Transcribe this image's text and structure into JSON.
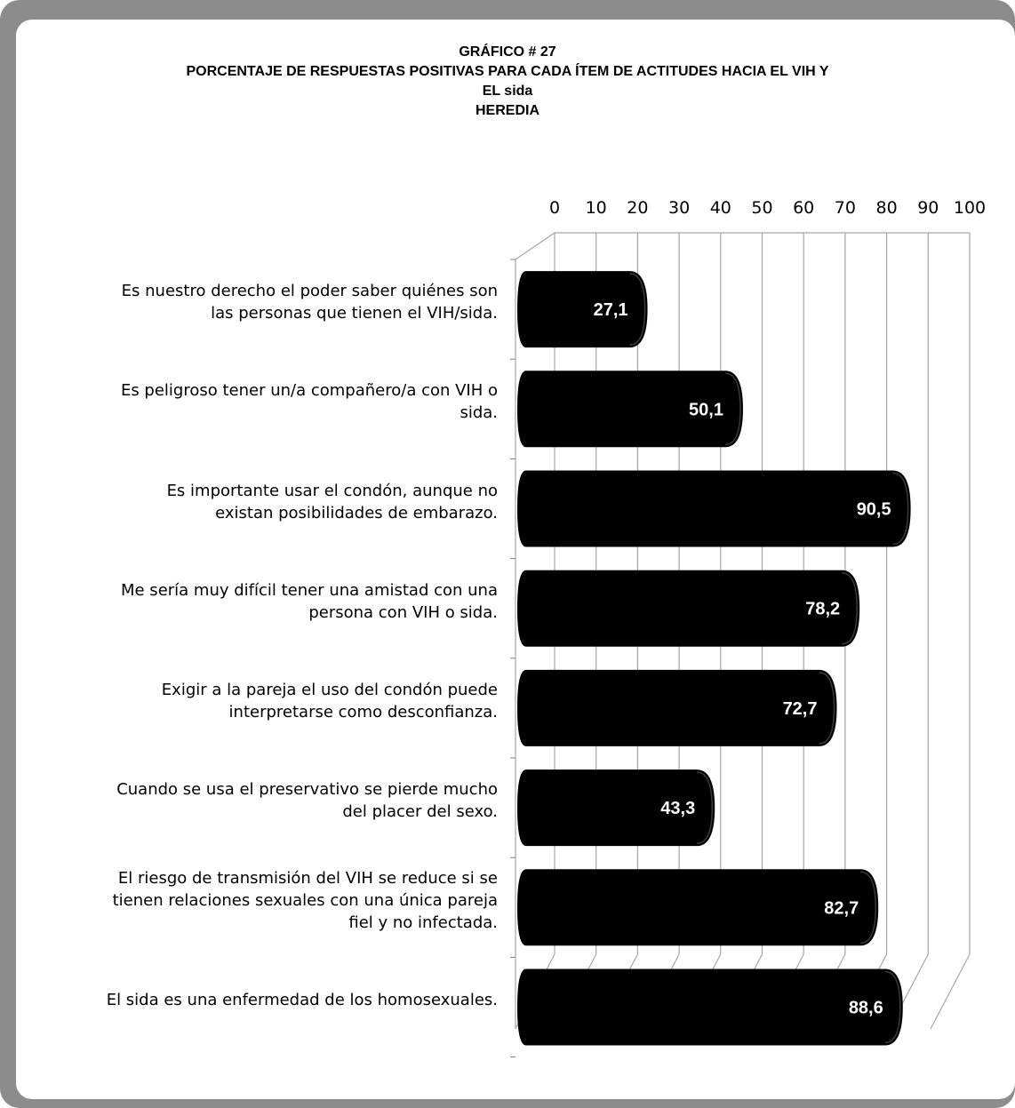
{
  "chart_data": {
    "type": "bar",
    "orientation": "horizontal",
    "style": "3d-cylinder",
    "title_lines": [
      "GRÁFICO # 27",
      "PORCENTAJE DE RESPUESTAS POSITIVAS PARA CADA ÍTEM DE ACTITUDES HACIA EL VIH Y",
      "EL sida",
      "HEREDIA"
    ],
    "categories": [
      [
        "Es nuestro derecho el poder saber quiénes son",
        "las personas que tienen el VIH/sida."
      ],
      [
        "Es peligroso tener un/a compañero/a con VIH o",
        "sida."
      ],
      [
        "Es importante usar el condón, aunque no",
        "existan posibilidades de embarazo."
      ],
      [
        "Me sería muy difícil tener una amistad con  una",
        "persona con VIH o sida."
      ],
      [
        "Exigir a la pareja el uso del condón puede",
        "interpretarse como desconfianza."
      ],
      [
        "Cuando se usa el preservativo se pierde mucho",
        "del placer del sexo."
      ],
      [
        "El riesgo de transmisión del VIH se reduce si se",
        "tienen relaciones sexuales con una única pareja",
        "fiel y no infectada."
      ],
      [
        "El sida es una enfermedad de los homosexuales."
      ]
    ],
    "values": [
      27.1,
      50.1,
      90.5,
      78.2,
      72.7,
      43.3,
      82.7,
      88.6
    ],
    "value_labels": [
      "27,1",
      "50,1",
      "90,5",
      "78,2",
      "72,7",
      "43,3",
      "82,7",
      "88,6"
    ],
    "xlim": [
      0,
      100
    ],
    "xticks": [
      "0",
      "10",
      "20",
      "30",
      "40",
      "50",
      "60",
      "70",
      "80",
      "90",
      "100"
    ],
    "axis_position": "top",
    "grid": true,
    "colors": {
      "bar": "#000000",
      "label": "#ffffff",
      "grid": "#a6a6a6",
      "frame": "#8c8c8c"
    }
  }
}
